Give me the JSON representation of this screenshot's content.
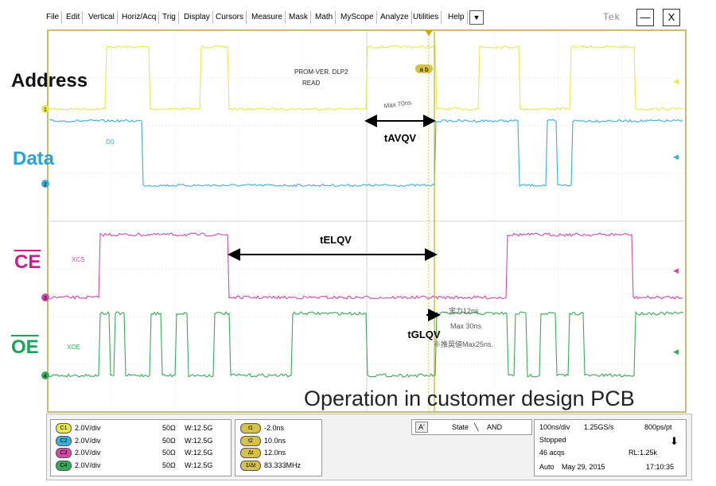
{
  "menu": [
    "File",
    "Edit",
    "Vertical",
    "Horiz/Acq",
    "Trig",
    "Display",
    "Cursors",
    "Measure",
    "Mask",
    "Math",
    "MyScope",
    "Analyze",
    "Utilities",
    "Help"
  ],
  "menu_dropdown": "▼",
  "brand": "Tek",
  "window": {
    "minimize": "—",
    "close": "X"
  },
  "labels": {
    "address": "Address",
    "data": "Data",
    "ce": "CE",
    "oe": "OE"
  },
  "trace_labels": {
    "prom": "PROM-VER. DLP2",
    "read": "READ",
    "d0": "D0",
    "xcs": "XCS",
    "xoe": "XOE"
  },
  "channel_markers": [
    "1",
    "2",
    "3",
    "4"
  ],
  "cursor_marker": "a b",
  "timing": {
    "tavqv": "tAVQV",
    "telqv": "tELQV",
    "tglqv": "tGLQV"
  },
  "handwritten": {
    "max70": "Max 70ns",
    "meas12": "→実力12ns",
    "max30": "Max 30ns",
    "pred25": "※推奨値Max25ns."
  },
  "caption": "Operation in customer design PCB",
  "channels": [
    {
      "id": "C1",
      "scale": "2.0V/div",
      "imp": "50Ω",
      "bw": "W:12.5G",
      "color": "#e8e84a"
    },
    {
      "id": "C2",
      "scale": "2.0V/div",
      "imp": "50Ω",
      "bw": "W:12.5G",
      "color": "#3aaed8"
    },
    {
      "id": "C3",
      "scale": "2.0V/div",
      "imp": "50Ω",
      "bw": "W:12.5G",
      "color": "#d04aa8"
    },
    {
      "id": "C4",
      "scale": "2.0V/div",
      "imp": "50Ω",
      "bw": "W:12.5G",
      "color": "#3aa85a"
    }
  ],
  "cursors": [
    {
      "tag": "t1",
      "value": "-2.0ns"
    },
    {
      "tag": "t2",
      "value": "10.0ns"
    },
    {
      "tag": "Δt",
      "value": "12.0ns"
    },
    {
      "tag": "1/Δt",
      "value": "83.333MHz"
    }
  ],
  "trigger": {
    "source": "A'",
    "mode": "State",
    "edge": "╲",
    "logic": "AND"
  },
  "acq": {
    "timebase": "100ns/div",
    "rate": "1.25GS/s",
    "res": "800ps/pt",
    "state": "Stopped",
    "acqs": "46 acqs",
    "rl": "RL:1.25k",
    "mode": "Auto",
    "date": "May 29, 2015",
    "time": "17:10:35"
  },
  "colors": {
    "ch1": "#e8e84a",
    "ch2": "#3aaed8",
    "ch3": "#d04aa8",
    "ch4": "#3aa85a",
    "address_label": "#111111",
    "data_label": "#29a3d6",
    "ce_label": "#c81e8c",
    "oe_label": "#19a35a"
  }
}
